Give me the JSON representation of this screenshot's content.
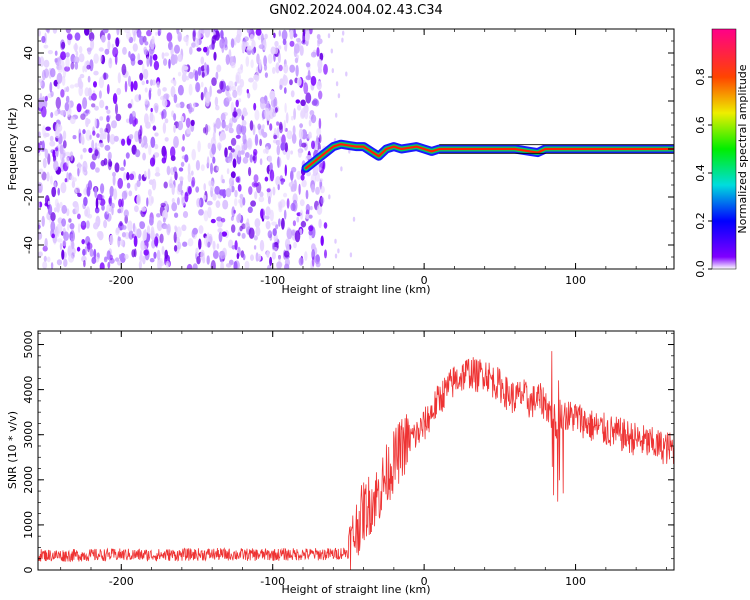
{
  "chart_data": [
    {
      "type": "heatmap",
      "title": "GN02.2024.004.02.43.C34",
      "xlabel": "Height of straight line (km)",
      "ylabel": "Frequency (Hz)",
      "xlim": [
        -255,
        165
      ],
      "ylim": [
        -50,
        50
      ],
      "xticks": [
        "-200",
        "-100",
        "0",
        "100"
      ],
      "xtick_values": [
        -200,
        -100,
        0,
        100
      ],
      "yticks": [
        "40",
        "20",
        "0",
        "-20",
        "-40"
      ],
      "ytick_values": [
        40,
        20,
        0,
        -20,
        -40
      ],
      "colorbar": {
        "label": "Normalized spectral amplitude",
        "range": [
          0,
          1
        ],
        "ticks": [
          "0.0",
          "0.2",
          "0.4",
          "0.6",
          "0.8"
        ],
        "tick_values": [
          0.0,
          0.2,
          0.4,
          0.6,
          0.8
        ],
        "colormap": "rainbow (violet to magenta)"
      },
      "noise_region": {
        "x_from": -255,
        "x_to": -65,
        "description_color": "#7a00ff"
      },
      "carrier_track": {
        "x": [
          -78,
          -72,
          -66,
          -60,
          -55,
          -50,
          -45,
          -40,
          -35,
          -30,
          -25,
          -20,
          -15,
          -10,
          -5,
          0,
          5,
          10,
          20,
          40,
          60,
          70,
          75,
          80,
          90,
          100,
          120,
          140,
          165
        ],
        "frequency": [
          -8,
          -5,
          -2,
          1,
          2,
          1.5,
          1,
          1,
          -1,
          -3,
          0,
          1,
          0,
          0.5,
          1,
          0,
          -1,
          0,
          0,
          0,
          0,
          -1,
          -1.5,
          0,
          0,
          0,
          0,
          0,
          0
        ]
      },
      "grid": false
    },
    {
      "type": "line",
      "title": "",
      "xlabel": "Height of straight line (km)",
      "ylabel": "SNR (10 * v/v)",
      "xlim": [
        -255,
        165
      ],
      "ylim": [
        0,
        5300
      ],
      "xticks": [
        "-200",
        "-100",
        "0",
        "100"
      ],
      "xtick_values": [
        -200,
        -100,
        0,
        100
      ],
      "yticks": [
        "0",
        "1000",
        "2000",
        "3000",
        "4000",
        "5000"
      ],
      "ytick_values": [
        0,
        1000,
        2000,
        3000,
        4000,
        5000
      ],
      "color": "#ee3333",
      "series": [
        {
          "x": [
            -255,
            -240,
            -220,
            -200,
            -180,
            -160,
            -140,
            -120,
            -100,
            -80,
            -60,
            -50,
            -45,
            -40,
            -35,
            -30,
            -25,
            -20,
            -15,
            -10,
            -5,
            0,
            5,
            10,
            15,
            20,
            25,
            30,
            35,
            40,
            45,
            50,
            55,
            60,
            65,
            70,
            75,
            80,
            85,
            88,
            90,
            95,
            100,
            110,
            120,
            130,
            140,
            150,
            160,
            165
          ],
          "y": [
            330,
            320,
            330,
            340,
            330,
            340,
            350,
            340,
            340,
            350,
            350,
            400,
            900,
            1300,
            1500,
            1700,
            2100,
            2400,
            2700,
            2900,
            3000,
            3200,
            3500,
            3800,
            4000,
            4200,
            4300,
            4400,
            4300,
            4400,
            4200,
            4100,
            3900,
            3800,
            3900,
            3700,
            3800,
            3700,
            3400,
            3200,
            3500,
            3400,
            3400,
            3200,
            3100,
            3000,
            2900,
            2800,
            2700,
            2700
          ]
        }
      ],
      "grid": false
    }
  ]
}
